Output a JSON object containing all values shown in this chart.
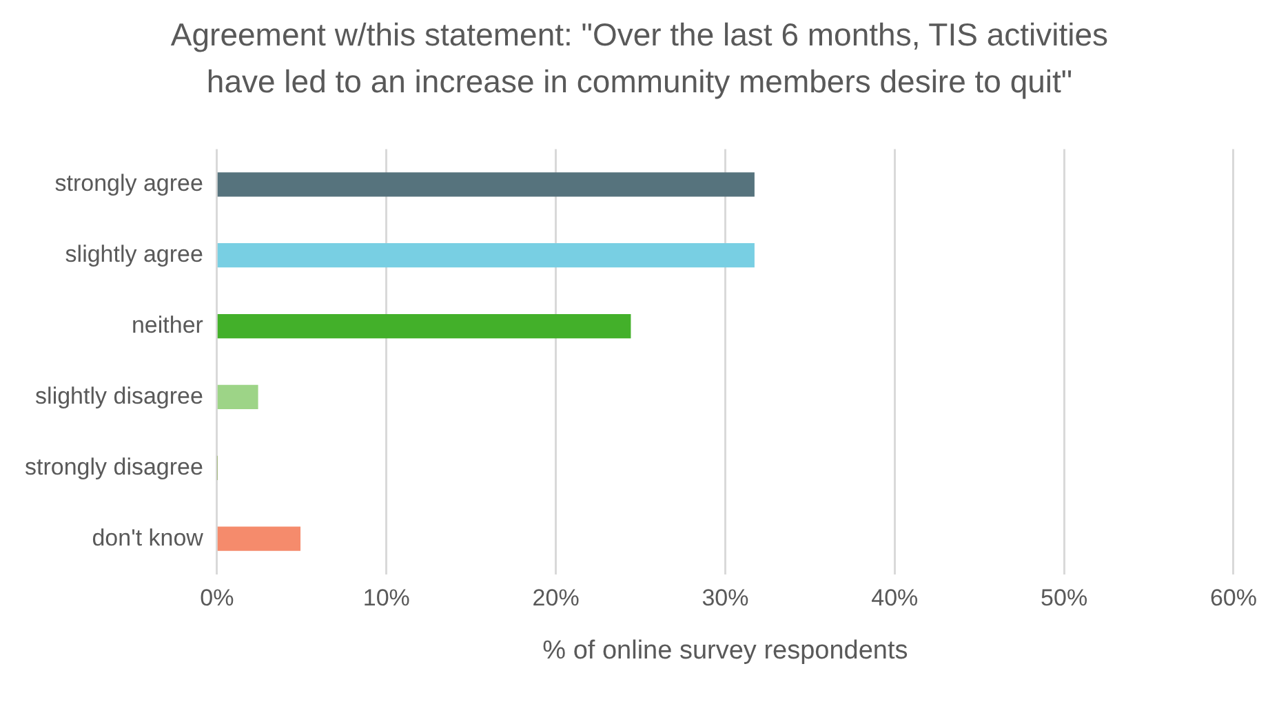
{
  "chart_data": {
    "type": "bar",
    "orientation": "horizontal",
    "title": "Agreement w/this statement: \"Over the last 6 months, TIS activities have led to an increase in community members desire to quit\"",
    "xlabel": "% of online survey respondents",
    "categories": [
      "strongly agree",
      "slightly agree",
      "neither",
      "slightly disagree",
      "strongly disagree",
      "don't know"
    ],
    "values": [
      31.7,
      31.7,
      24.4,
      2.4,
      0,
      4.9
    ],
    "colors": [
      "#56737d",
      "#78cfe3",
      "#43b02a",
      "#9dd487",
      "#7f9f3f",
      "#f58b6c"
    ],
    "xlim": [
      0,
      60
    ],
    "xticks": [
      {
        "value": 0,
        "label": "0%"
      },
      {
        "value": 10,
        "label": "10%"
      },
      {
        "value": 20,
        "label": "20%"
      },
      {
        "value": 30,
        "label": "30%"
      },
      {
        "value": 40,
        "label": "40%"
      },
      {
        "value": 50,
        "label": "50%"
      },
      {
        "value": 60,
        "label": "60%"
      }
    ],
    "grid": "x",
    "legend": false
  }
}
